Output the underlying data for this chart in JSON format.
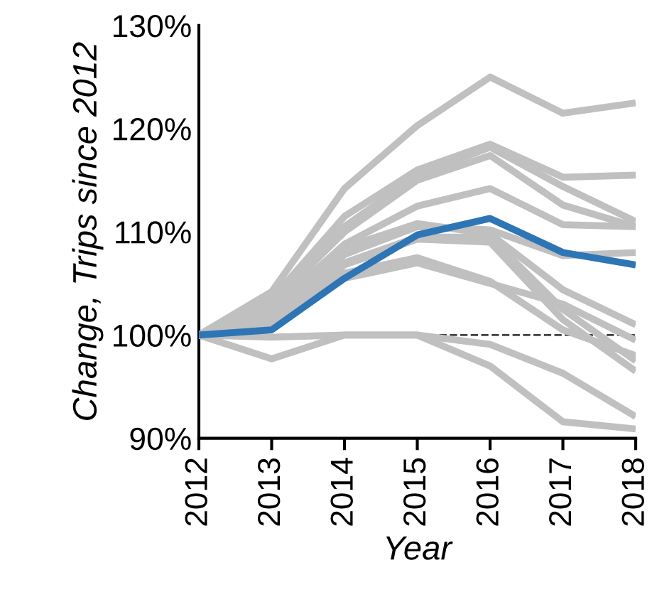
{
  "chart_data": {
    "type": "line",
    "xlabel": "Year",
    "ylabel": "Change, Trips since 2012",
    "x": [
      2012,
      2013,
      2014,
      2015,
      2016,
      2017,
      2018
    ],
    "xlim": [
      2012,
      2018
    ],
    "xticks": [
      2012,
      2013,
      2014,
      2015,
      2016,
      2017,
      2018
    ],
    "ylim": [
      90,
      130
    ],
    "yticks": [
      {
        "value": 90,
        "label": "90%"
      },
      {
        "value": 100,
        "label": "100%"
      },
      {
        "value": 110,
        "label": "110%"
      },
      {
        "value": 120,
        "label": "120%"
      },
      {
        "value": 130,
        "label": "130%"
      }
    ],
    "grid": false,
    "legend": false,
    "marker": "none",
    "line_style": "solid",
    "ref_lines": [
      {
        "axis": "y",
        "value": 100,
        "color": "#404040",
        "line_style": "dashed"
      }
    ],
    "series": [
      {
        "color": "#c0c0c0",
        "values": [
          100,
          104.2,
          114.2,
          120.3,
          125,
          121.5,
          122.5
        ]
      },
      {
        "color": "#c0c0c0",
        "values": [
          100,
          103.5,
          111.5,
          116,
          118.5,
          115.3,
          115.5
        ]
      },
      {
        "color": "#c0c0c0",
        "values": [
          100,
          103,
          110.5,
          115.5,
          118.2,
          114.4,
          111
        ]
      },
      {
        "color": "#c0c0c0",
        "values": [
          100,
          103,
          110,
          115,
          117.4,
          112.6,
          110.5
        ]
      },
      {
        "color": "#c0c0c0",
        "values": [
          100,
          102.5,
          108.8,
          112.5,
          114.2,
          110.7,
          110.5
        ]
      },
      {
        "color": "#c0c0c0",
        "values": [
          100,
          102,
          107.8,
          110.5,
          110.2,
          107.7,
          108
        ]
      },
      {
        "color": "#c0c0c0",
        "values": [
          100,
          102,
          108.5,
          110.8,
          109.8,
          104.4,
          101
        ]
      },
      {
        "color": "#c0c0c0",
        "values": [
          100,
          101.5,
          107,
          109.5,
          109.5,
          102.5,
          97.5
        ]
      },
      {
        "color": "#c0c0c0",
        "values": [
          100,
          101.5,
          106.8,
          109.3,
          109,
          101.5,
          96.5
        ]
      },
      {
        "color": "#c0c0c0",
        "values": [
          100,
          101,
          106,
          107.5,
          105.2,
          100.5,
          98
        ]
      },
      {
        "color": "#c0c0c0",
        "values": [
          100,
          101,
          105.5,
          107,
          105,
          103,
          99.5
        ]
      },
      {
        "color": "#c0c0c0",
        "values": [
          100,
          97.7,
          100,
          100,
          99.1,
          96.3,
          92.1
        ]
      },
      {
        "color": "#c0c0c0",
        "values": [
          100,
          99.8,
          100,
          100,
          97,
          91.6,
          90.9
        ]
      },
      {
        "color": "#2e75b6",
        "values": [
          100,
          100.5,
          105.5,
          109.7,
          111.3,
          108,
          106.8
        ]
      }
    ]
  }
}
